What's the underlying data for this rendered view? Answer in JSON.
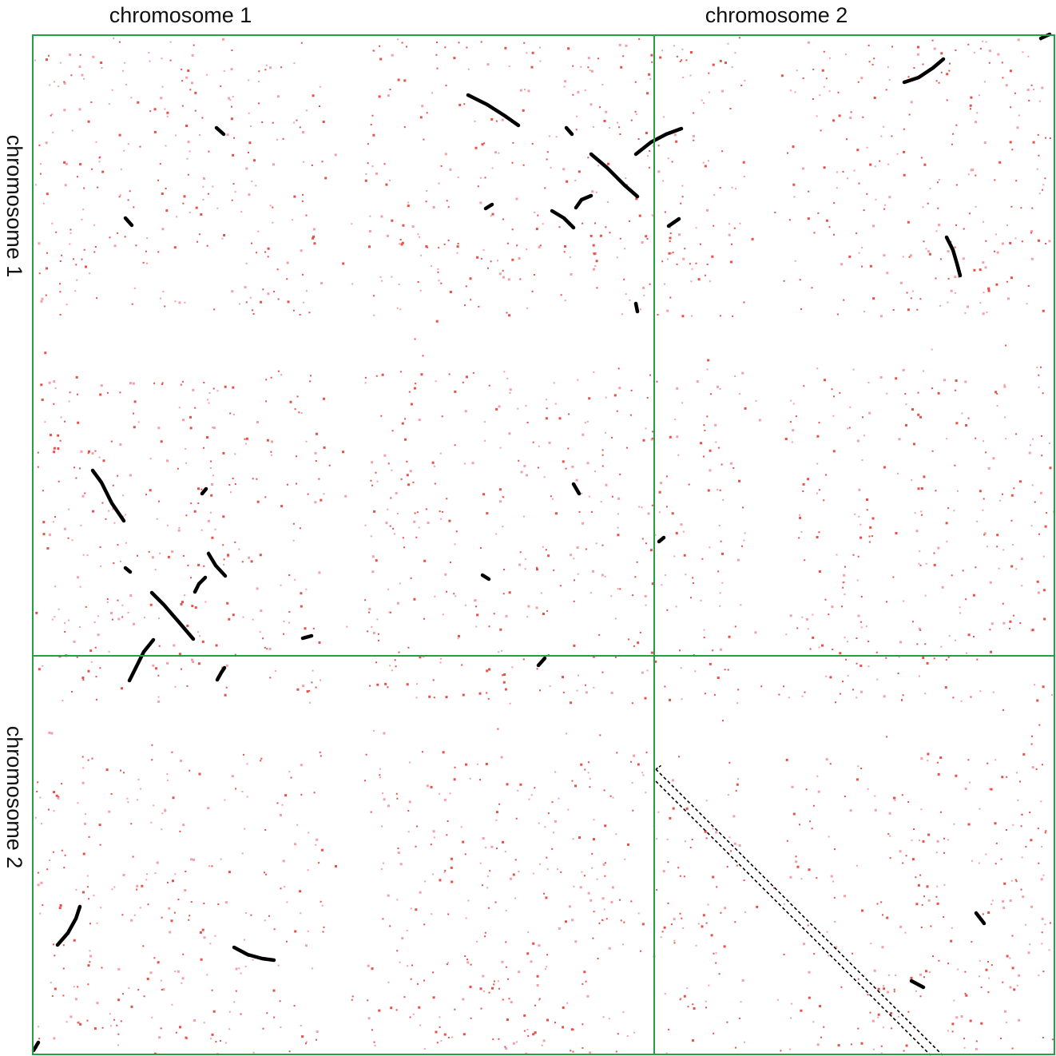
{
  "labels": {
    "columns": [
      "chromosome 1",
      "chromosome 2"
    ],
    "rows": [
      "chromosome 1",
      "chromosome 2"
    ]
  },
  "colors": {
    "grid": "#21a045",
    "noise_dense": "#e8504a",
    "noise_light": "#f4a0a8",
    "synteny": "#000000",
    "highlight_band": "#000000"
  }
}
